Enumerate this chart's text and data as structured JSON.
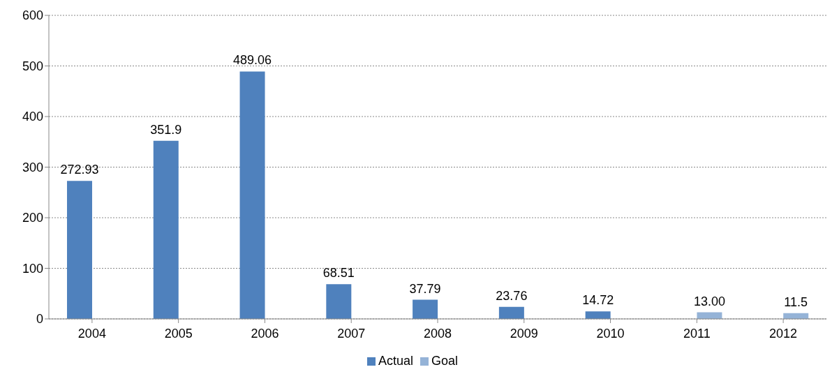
{
  "chart_data": {
    "type": "bar",
    "categories": [
      "2004",
      "2005",
      "2006",
      "2007",
      "2008",
      "2009",
      "2010",
      "2011",
      "2012"
    ],
    "series": [
      {
        "name": "Actual",
        "color": "#4f81bd",
        "values": [
          272.93,
          351.9,
          489.06,
          68.51,
          37.79,
          23.76,
          14.72,
          null,
          null
        ],
        "value_labels": [
          "272.93",
          "351.9",
          "489.06",
          "68.51",
          "37.79",
          "23.76",
          "14.72",
          null,
          null
        ]
      },
      {
        "name": "Goal",
        "color": "#95b3d7",
        "values": [
          null,
          null,
          null,
          null,
          null,
          null,
          null,
          13.0,
          11.5
        ],
        "value_labels": [
          null,
          null,
          null,
          null,
          null,
          null,
          null,
          "13.00",
          "11.5"
        ]
      }
    ],
    "ylim": [
      0,
      600
    ],
    "yticks": [
      0,
      100,
      200,
      300,
      400,
      500,
      600
    ],
    "grid": "y",
    "legend": "bottom"
  }
}
